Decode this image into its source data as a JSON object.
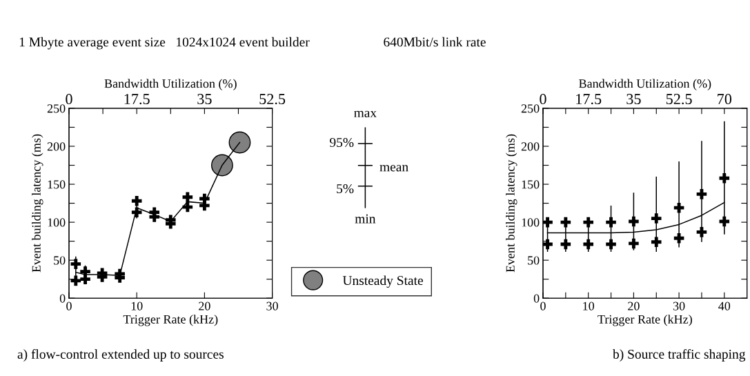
{
  "chart_data": [
    {
      "type": "line",
      "xlabel": "Trigger Rate (kHz)",
      "ylabel": "Event building latency (ms)",
      "x2label": "Bandwidth Utilization (%)",
      "xlim": [
        0,
        30
      ],
      "xticks": [
        0,
        10,
        20,
        30
      ],
      "ylim": [
        0,
        250
      ],
      "yticks": [
        0,
        {
          "value": 25,
          "label": null
        },
        50,
        {
          "value": 75,
          "label": null
        },
        100,
        {
          "value": 125,
          "label": null
        },
        150,
        {
          "value": 175,
          "label": null
        },
        200,
        {
          "value": 225,
          "label": null
        },
        250
      ],
      "x2lim": [
        0,
        52.5
      ],
      "x2ticks": [
        0,
        {
          "value": 8.75,
          "label": null
        },
        17.5,
        {
          "value": 26.25,
          "label": null
        },
        35,
        {
          "value": 43.75,
          "label": null
        },
        52.5
      ],
      "legend": "right",
      "grid": false,
      "series": [
        {
          "color": "#000000",
          "x": [
            1,
            2.4,
            4.9,
            7.5,
            10,
            12.6,
            15,
            17.5,
            20,
            22.6,
            25.2
          ],
          "values": [
            34,
            31,
            31,
            30,
            119,
            110,
            101,
            127,
            125,
            175,
            205
          ],
          "errors": [
            [
              20,
              55
            ],
            [
              20,
              43
            ],
            [
              26,
              35
            ],
            [
              26,
              34
            ],
            [
              105,
              130
            ],
            [
              104,
              116
            ],
            [
              95,
              105
            ],
            [
              117,
              137
            ],
            [
              119,
              133
            ],
            null,
            null
          ]
        },
        {
          "type": "scatter",
          "color": "#000000",
          "marker": "cross",
          "x": [
            1,
            2.4,
            4.9,
            7.5,
            10,
            12.6,
            15,
            17.5,
            20
          ],
          "values": [
            45,
            35,
            33,
            32,
            128,
            113,
            103,
            133,
            131
          ]
        },
        {
          "type": "scatter",
          "color": "#000000",
          "marker": "cross",
          "x": [
            1,
            2.4,
            4.9,
            7.5,
            10,
            12.6,
            15,
            17.5,
            20
          ],
          "values": [
            23,
            25,
            28,
            27,
            113,
            107,
            98,
            120,
            122
          ]
        },
        {
          "type": "scatter",
          "name": "Unsteady State",
          "color": "#808080",
          "marker": "circle",
          "x": [
            22.6,
            25.2
          ],
          "values": [
            175,
            205
          ]
        }
      ],
      "annotations": [
        "1 Mbyte average event size",
        "1024x1024 event builder",
        "640Mbit/s link rate",
        "a) flow-control extended up to sources",
        "max",
        "95%",
        "mean",
        "5%",
        "min"
      ]
    },
    {
      "type": "line",
      "xlabel": "Trigger Rate (kHz)",
      "ylabel": "Event building latency (ms)",
      "x2label": "Bandwidth Utilization (%)",
      "xlim": [
        0,
        45
      ],
      "xticks": [
        0,
        {
          "value": 5,
          "label": null
        },
        10,
        {
          "value": 15,
          "label": null
        },
        20,
        {
          "value": 25,
          "label": null
        },
        30,
        {
          "value": 35,
          "label": null
        },
        40
      ],
      "ylim": [
        0,
        250
      ],
      "yticks": [
        0,
        {
          "value": 25,
          "label": null
        },
        50,
        {
          "value": 75,
          "label": null
        },
        100,
        {
          "value": 125,
          "label": null
        },
        150,
        {
          "value": 175,
          "label": null
        },
        200,
        {
          "value": 225,
          "label": null
        },
        250
      ],
      "x2lim": [
        0,
        78.75
      ],
      "x2ticks": [
        0,
        {
          "value": 8.75,
          "label": null
        },
        17.5,
        {
          "value": 26.25,
          "label": null
        },
        35,
        {
          "value": 43.75,
          "label": null
        },
        52.5,
        {
          "value": 61.25,
          "label": null
        },
        70
      ],
      "grid": false,
      "series": [
        {
          "color": "#000000",
          "x": [
            1,
            5,
            10,
            15,
            20,
            25,
            30,
            35,
            40
          ],
          "values": [
            86,
            86,
            86,
            86,
            87,
            90,
            97,
            109,
            126
          ],
          "errors": [
            [
              61,
              105
            ],
            [
              61,
              105
            ],
            [
              61,
              105
            ],
            [
              61,
              122
            ],
            [
              63,
              139
            ],
            [
              61,
              160
            ],
            [
              67,
              180
            ],
            [
              74,
              207
            ],
            [
              84,
              233
            ]
          ]
        },
        {
          "type": "scatter",
          "color": "#000000",
          "marker": "cross",
          "x": [
            1,
            5,
            10,
            15,
            20,
            25,
            30,
            35,
            40
          ],
          "values": [
            100,
            100,
            100,
            100,
            101,
            105,
            119,
            137,
            158
          ]
        },
        {
          "type": "scatter",
          "color": "#000000",
          "marker": "cross",
          "x": [
            1,
            5,
            10,
            15,
            20,
            25,
            30,
            35,
            40
          ],
          "values": [
            71,
            71,
            71,
            71,
            72,
            74,
            79,
            87,
            101
          ]
        }
      ],
      "annotations": [
        "b) Source traffic shaping"
      ]
    }
  ]
}
